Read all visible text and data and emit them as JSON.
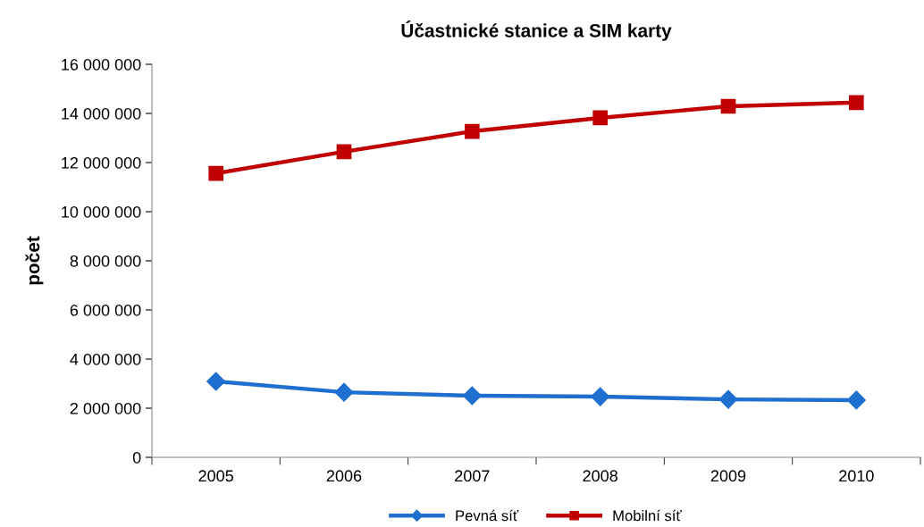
{
  "chart_data": {
    "type": "line",
    "title": "Účastnické stanice a SIM karty",
    "ylabel": "počet",
    "categories": [
      "2005",
      "2006",
      "2007",
      "2008",
      "2009",
      "2010"
    ],
    "series": [
      {
        "name": "Pevná síť",
        "color": "#1f6fd0",
        "marker": "diamond",
        "values": [
          3090000,
          2650000,
          2510000,
          2470000,
          2360000,
          2330000
        ]
      },
      {
        "name": "Mobilní síť",
        "color": "#c00000",
        "marker": "square",
        "values": [
          11560000,
          12440000,
          13270000,
          13820000,
          14290000,
          14440000
        ]
      }
    ],
    "ylim": [
      0,
      16000000
    ],
    "yticks": [
      {
        "value": 0,
        "label": "0"
      },
      {
        "value": 2000000,
        "label": "2 000 000"
      },
      {
        "value": 4000000,
        "label": "4 000 000"
      },
      {
        "value": 6000000,
        "label": "6 000 000"
      },
      {
        "value": 8000000,
        "label": "8 000 000"
      },
      {
        "value": 10000000,
        "label": "10 000 000"
      },
      {
        "value": 12000000,
        "label": "12 000 000"
      },
      {
        "value": 14000000,
        "label": "14 000 000"
      },
      {
        "value": 16000000,
        "label": "16 000 000"
      }
    ],
    "grid": false,
    "legend": "bottom",
    "line_style": "solid"
  }
}
